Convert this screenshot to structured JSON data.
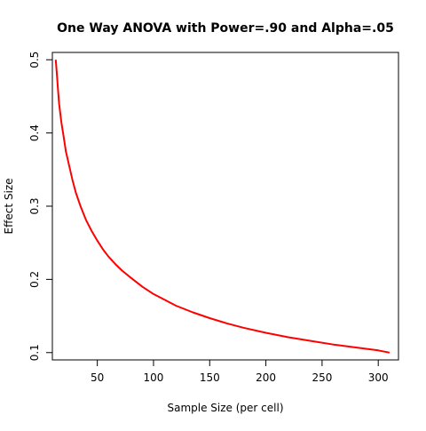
{
  "chart_data": {
    "type": "line",
    "title": "One Way ANOVA with Power=.90 and Alpha=.05",
    "xlabel": "Sample Size (per cell)",
    "ylabel": "Effect Size",
    "xlim": [
      10,
      318
    ],
    "ylim": [
      0.09,
      0.51
    ],
    "x_ticks": [
      50,
      100,
      150,
      200,
      250,
      300
    ],
    "y_ticks": [
      0.1,
      0.2,
      0.3,
      0.4,
      0.5
    ],
    "grid": false,
    "legend": "none",
    "series": [
      {
        "color": "#ff0000",
        "x": [
          13,
          14,
          15,
          16,
          18,
          20,
          22,
          25,
          28,
          31,
          35,
          40,
          45,
          50,
          55,
          60,
          66,
          72,
          80,
          90,
          100,
          110,
          120,
          135,
          150,
          165,
          180,
          200,
          220,
          240,
          260,
          280,
          300,
          310
        ],
        "y": [
          0.5,
          0.48,
          0.46,
          0.44,
          0.415,
          0.395,
          0.375,
          0.355,
          0.335,
          0.318,
          0.3,
          0.281,
          0.266,
          0.253,
          0.241,
          0.231,
          0.221,
          0.212,
          0.202,
          0.19,
          0.18,
          0.172,
          0.164,
          0.155,
          0.147,
          0.14,
          0.134,
          0.127,
          0.121,
          0.116,
          0.111,
          0.107,
          0.103,
          0.1
        ]
      }
    ]
  }
}
